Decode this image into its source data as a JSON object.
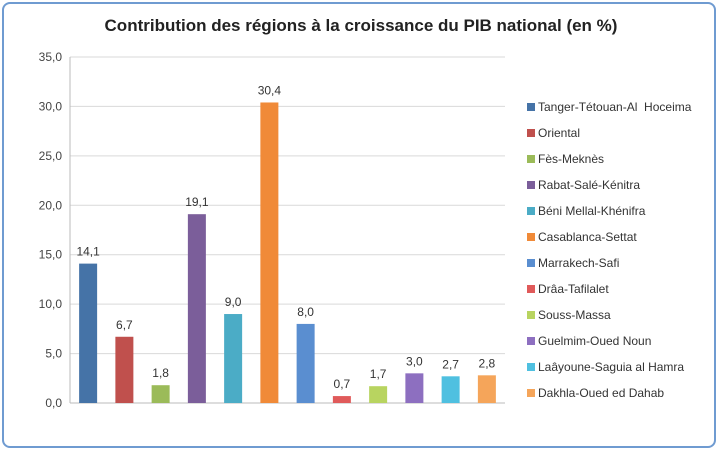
{
  "chart_data": {
    "type": "bar",
    "title": "Contribution des régions à la croissance du PIB national (en %)",
    "xlabel": "",
    "ylabel": "",
    "ylim": [
      0,
      35
    ],
    "yticks": [
      "0,0",
      "5,0",
      "10,0",
      "15,0",
      "20,0",
      "25,0",
      "30,0",
      "35,0"
    ],
    "grid": true,
    "legend_position": "right",
    "categories": [
      "Tanger-Tétouan-Al  Hoceima",
      "Oriental",
      "Fès-Meknès",
      "Rabat-Salé-Kénitra",
      "Béni Mellal-Khénifra",
      "Casablanca-Settat",
      "Marrakech-Safi",
      "Drâa-Tafilalet",
      "Souss-Massa",
      "Guelmim-Oued Noun",
      "Laâyoune-Saguia al Hamra",
      "Dakhla-Oued ed Dahab"
    ],
    "values": [
      14.1,
      6.7,
      1.8,
      19.1,
      9.0,
      30.4,
      8.0,
      0.7,
      1.7,
      3.0,
      2.7,
      2.8
    ],
    "data_labels": [
      "14,1",
      "6,7",
      "1,8",
      "19,1",
      "9,0",
      "30,4",
      "8,0",
      "0,7",
      "1,7",
      "3,0",
      "2,7",
      "2,8"
    ],
    "colors": [
      "#4573a7",
      "#c0504d",
      "#9bbb59",
      "#7b5e9a",
      "#4bacc6",
      "#f08a38",
      "#5a8ed0",
      "#e05a5a",
      "#b8d460",
      "#8d6fc0",
      "#4fc0e0",
      "#f5a55a"
    ]
  }
}
